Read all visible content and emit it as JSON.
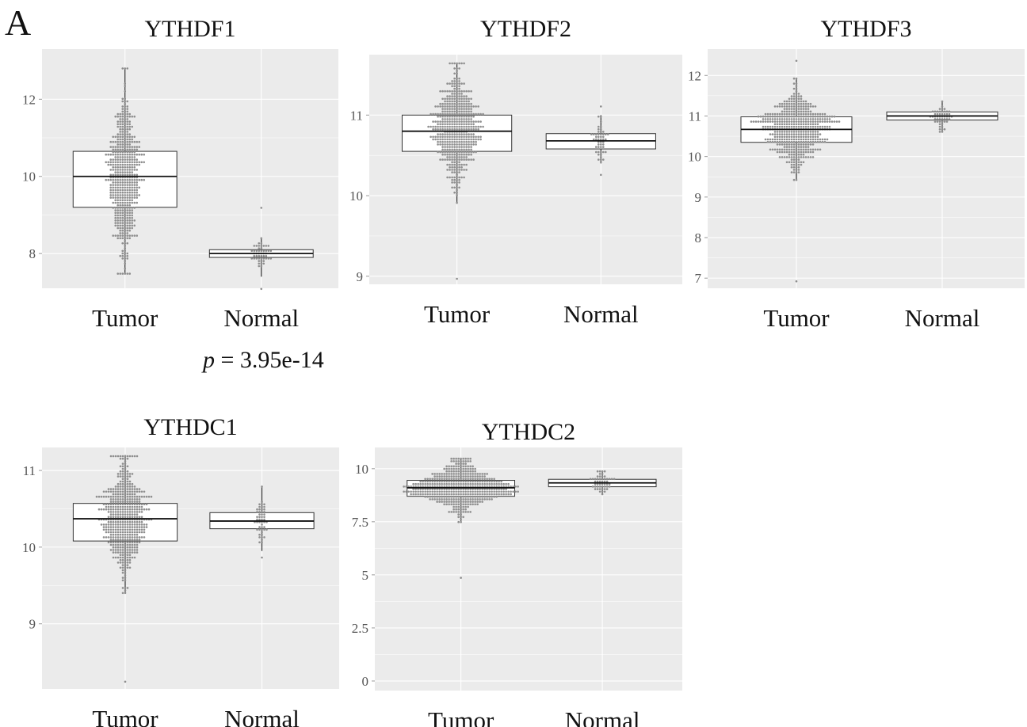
{
  "figure": {
    "panel_letter": "A",
    "annotation": {
      "var": "p",
      "eq": " = ",
      "value": "3.95e-14"
    }
  },
  "colors": {
    "panel_bg": "#ebebeb",
    "grid": "#ffffff",
    "dots": "#8e8e8e",
    "box_fill": "#ffffff",
    "box_line": "#333333"
  },
  "chart_data": [
    {
      "type": "box",
      "title": "YTHDF1",
      "categories": [
        "Tumor",
        "Normal"
      ],
      "ylim": [
        7.1,
        13.3
      ],
      "yticks": [
        8,
        10,
        12
      ],
      "ytick_labels": [
        "8",
        "10",
        "12"
      ],
      "series": [
        {
          "category": "Tumor",
          "q1": 9.2,
          "median": 10.0,
          "q3": 10.65,
          "whisker_low": 7.5,
          "whisker_high": 12.8,
          "min": 7.5,
          "max": 12.8,
          "n_points": 520
        },
        {
          "category": "Normal",
          "q1": 7.9,
          "median": 8.0,
          "q3": 8.1,
          "whisker_low": 7.4,
          "whisker_high": 8.4,
          "min": 7.1,
          "max": 9.2,
          "n_points": 50
        }
      ]
    },
    {
      "type": "box",
      "title": "YTHDF2",
      "categories": [
        "Tumor",
        "Normal"
      ],
      "ylim": [
        8.9,
        11.75
      ],
      "yticks": [
        9,
        10,
        11
      ],
      "ytick_labels": [
        "9",
        "10",
        "11"
      ],
      "series": [
        {
          "category": "Tumor",
          "q1": 10.55,
          "median": 10.8,
          "q3": 11.0,
          "whisker_low": 9.9,
          "whisker_high": 11.65,
          "min": 8.97,
          "max": 11.65,
          "n_points": 520
        },
        {
          "category": "Normal",
          "q1": 10.58,
          "median": 10.68,
          "q3": 10.77,
          "whisker_low": 10.4,
          "whisker_high": 11.0,
          "min": 10.27,
          "max": 11.1,
          "n_points": 50
        }
      ]
    },
    {
      "type": "box",
      "title": "YTHDF3",
      "categories": [
        "Tumor",
        "Normal"
      ],
      "ylim": [
        6.75,
        12.65
      ],
      "yticks": [
        7,
        8,
        9,
        10,
        11,
        12
      ],
      "ytick_labels": [
        "7",
        "8",
        "9",
        "10",
        "11",
        "12"
      ],
      "series": [
        {
          "category": "Tumor",
          "q1": 10.35,
          "median": 10.67,
          "q3": 10.98,
          "whisker_low": 9.4,
          "whisker_high": 11.9,
          "min": 6.9,
          "max": 12.35,
          "n_points": 520
        },
        {
          "category": "Normal",
          "q1": 10.9,
          "median": 11.0,
          "q3": 11.1,
          "whisker_low": 10.6,
          "whisker_high": 11.35,
          "min": 10.6,
          "max": 11.35,
          "n_points": 50
        }
      ]
    },
    {
      "type": "box",
      "title": "YTHDC1",
      "categories": [
        "Tumor",
        "Normal"
      ],
      "ylim": [
        8.15,
        11.3
      ],
      "yticks": [
        9,
        10,
        11
      ],
      "ytick_labels": [
        "9",
        "10",
        "11"
      ],
      "series": [
        {
          "category": "Tumor",
          "q1": 10.08,
          "median": 10.37,
          "q3": 10.57,
          "whisker_low": 9.4,
          "whisker_high": 11.2,
          "min": 8.25,
          "max": 11.2,
          "n_points": 520
        },
        {
          "category": "Normal",
          "q1": 10.24,
          "median": 10.34,
          "q3": 10.45,
          "whisker_low": 9.95,
          "whisker_high": 10.78,
          "min": 9.87,
          "max": 10.78,
          "n_points": 50
        }
      ]
    },
    {
      "type": "box",
      "title": "YTHDC2",
      "categories": [
        "Tumor",
        "Normal"
      ],
      "ylim": [
        -0.45,
        11.0
      ],
      "yticks": [
        0,
        2.5,
        5,
        7.5,
        10
      ],
      "ytick_labels": [
        "0",
        "2.5",
        "5",
        "7.5",
        "10"
      ],
      "series": [
        {
          "category": "Tumor",
          "q1": 8.7,
          "median": 9.1,
          "q3": 9.45,
          "whisker_low": 7.5,
          "whisker_high": 10.5,
          "min": 4.9,
          "max": 10.5,
          "n_points": 520
        },
        {
          "category": "Normal",
          "q1": 9.15,
          "median": 9.33,
          "q3": 9.5,
          "whisker_low": 8.8,
          "whisker_high": 9.9,
          "min": 8.8,
          "max": 9.9,
          "n_points": 50
        }
      ]
    }
  ]
}
